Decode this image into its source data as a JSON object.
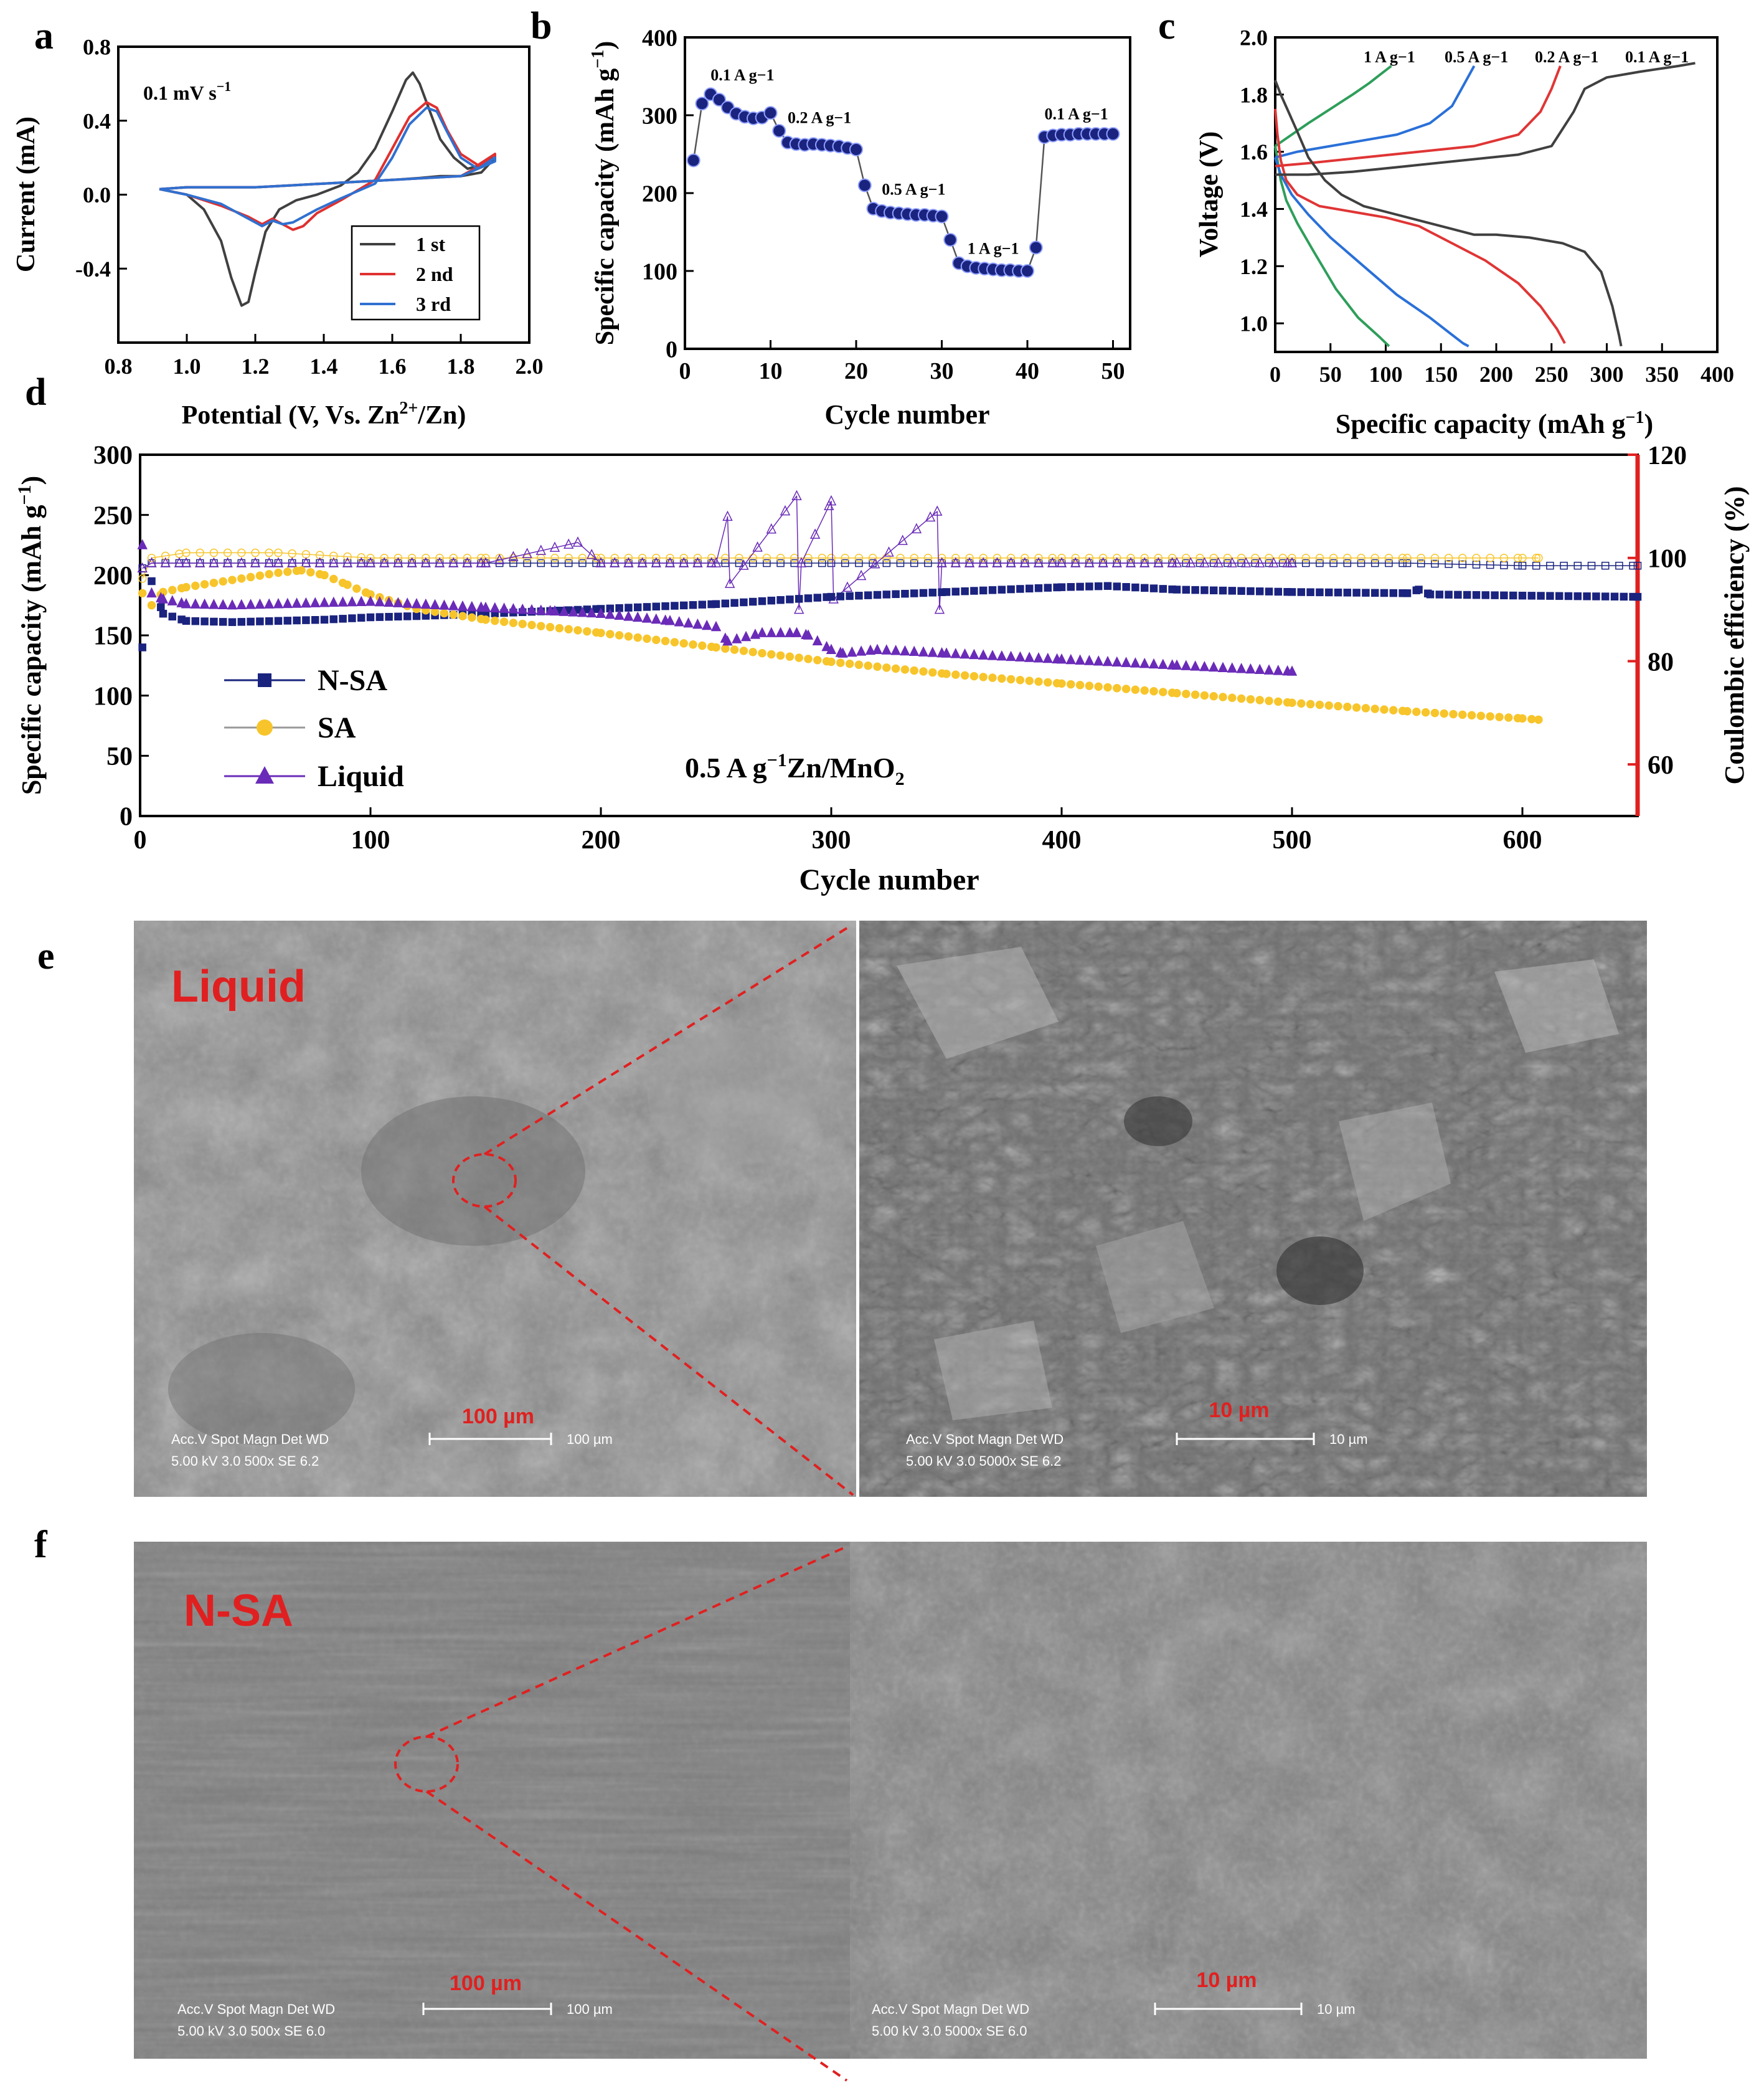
{
  "chart_data": [
    {
      "panel": "a",
      "type": "line",
      "xlabel": "Potential (V, Vs. Zn2+/Zn)",
      "ylabel": "Current (mA)",
      "xlim": [
        0.8,
        2.0
      ],
      "ylim": [
        -0.8,
        0.8
      ],
      "xticks": [
        "0.8",
        "1.0",
        "1.2",
        "1.4",
        "1.6",
        "1.8",
        "2.0"
      ],
      "yticks": [
        "-0.4",
        "0.0",
        "0.4",
        "0.8"
      ],
      "annotation": "0.1 mV s−1",
      "legend_position": "bottom-right",
      "series": [
        {
          "name": "1 st",
          "color": "#404040",
          "x": [
            0.92,
            1.0,
            1.05,
            1.1,
            1.13,
            1.16,
            1.18,
            1.2,
            1.23,
            1.27,
            1.32,
            1.38,
            1.45,
            1.5,
            1.55,
            1.6,
            1.64,
            1.66,
            1.68,
            1.71,
            1.74,
            1.78,
            1.82,
            1.86,
            1.9,
            1.9,
            1.86,
            1.8,
            1.74,
            1.68,
            1.6,
            1.5,
            1.4,
            1.3,
            1.2,
            1.1,
            1.0,
            0.92
          ],
          "y": [
            0.03,
            0.0,
            -0.08,
            -0.25,
            -0.45,
            -0.6,
            -0.58,
            -0.42,
            -0.2,
            -0.08,
            -0.03,
            0.0,
            0.05,
            0.12,
            0.25,
            0.45,
            0.62,
            0.66,
            0.6,
            0.45,
            0.3,
            0.2,
            0.14,
            0.16,
            0.22,
            0.2,
            0.12,
            0.1,
            0.1,
            0.09,
            0.08,
            0.07,
            0.06,
            0.05,
            0.04,
            0.04,
            0.04,
            0.03
          ]
        },
        {
          "name": "2 nd",
          "color": "#e03030",
          "x": [
            0.92,
            1.0,
            1.1,
            1.18,
            1.22,
            1.25,
            1.28,
            1.31,
            1.34,
            1.38,
            1.45,
            1.55,
            1.6,
            1.65,
            1.7,
            1.73,
            1.76,
            1.8,
            1.85,
            1.9,
            1.9,
            1.8,
            1.7,
            1.6,
            1.5,
            1.4,
            1.3,
            1.2,
            1.1,
            1.0,
            0.92
          ],
          "y": [
            0.03,
            0.0,
            -0.06,
            -0.12,
            -0.16,
            -0.13,
            -0.16,
            -0.19,
            -0.17,
            -0.1,
            -0.03,
            0.08,
            0.25,
            0.42,
            0.5,
            0.47,
            0.35,
            0.22,
            0.16,
            0.22,
            0.2,
            0.1,
            0.09,
            0.08,
            0.07,
            0.06,
            0.05,
            0.04,
            0.04,
            0.04,
            0.03
          ]
        },
        {
          "name": "3 rd",
          "color": "#3070d0",
          "x": [
            0.92,
            1.0,
            1.1,
            1.18,
            1.22,
            1.25,
            1.28,
            1.31,
            1.34,
            1.38,
            1.45,
            1.55,
            1.6,
            1.65,
            1.7,
            1.73,
            1.76,
            1.8,
            1.85,
            1.9,
            1.9,
            1.8,
            1.7,
            1.6,
            1.5,
            1.4,
            1.3,
            1.2,
            1.1,
            1.0,
            0.92
          ],
          "y": [
            0.03,
            0.0,
            -0.05,
            -0.13,
            -0.17,
            -0.14,
            -0.16,
            -0.15,
            -0.12,
            -0.08,
            -0.02,
            0.06,
            0.2,
            0.38,
            0.47,
            0.45,
            0.34,
            0.2,
            0.14,
            0.2,
            0.18,
            0.1,
            0.09,
            0.08,
            0.07,
            0.06,
            0.05,
            0.04,
            0.04,
            0.04,
            0.03
          ]
        }
      ]
    },
    {
      "panel": "b",
      "type": "scatter",
      "xlabel": "Cycle number",
      "ylabel": "Specific capacity (mAh g−1)",
      "xlim": [
        0,
        52
      ],
      "ylim": [
        0,
        400
      ],
      "xticks": [
        "0",
        "10",
        "20",
        "30",
        "40",
        "50"
      ],
      "yticks": [
        "0",
        "100",
        "200",
        "300",
        "400"
      ],
      "marker_color": "#1a237e",
      "x": [
        1,
        2,
        3,
        4,
        5,
        6,
        7,
        8,
        9,
        10,
        11,
        12,
        13,
        14,
        15,
        16,
        17,
        18,
        19,
        20,
        21,
        22,
        23,
        24,
        25,
        26,
        27,
        28,
        29,
        30,
        31,
        32,
        33,
        34,
        35,
        36,
        37,
        38,
        39,
        40,
        41,
        42,
        43,
        44,
        45,
        46,
        47,
        48,
        49,
        50
      ],
      "y": [
        242,
        315,
        327,
        320,
        310,
        302,
        298,
        296,
        297,
        303,
        280,
        265,
        263,
        262,
        263,
        262,
        261,
        260,
        258,
        256,
        210,
        180,
        177,
        175,
        174,
        173,
        172,
        172,
        171,
        170,
        140,
        110,
        106,
        104,
        103,
        102,
        101,
        101,
        100,
        100,
        130,
        272,
        274,
        275,
        275,
        276,
        276,
        276,
        276,
        276
      ],
      "labels": [
        {
          "text": "0.1 A g−1",
          "x": 3,
          "y": 345
        },
        {
          "text": "0.2 A g−1",
          "x": 12,
          "y": 290
        },
        {
          "text": "0.5 A g−1",
          "x": 23,
          "y": 198
        },
        {
          "text": "1 A g−1",
          "x": 33,
          "y": 122
        },
        {
          "text": "0.1 A g−1",
          "x": 42,
          "y": 295
        }
      ]
    },
    {
      "panel": "c",
      "type": "line",
      "xlabel": "Specific capacity (mAh g−1)",
      "ylabel": "Voltage (V)",
      "xlim": [
        0,
        400
      ],
      "ylim": [
        0.9,
        2.0
      ],
      "xticks": [
        "0",
        "50",
        "100",
        "150",
        "200",
        "250",
        "300",
        "350",
        "400"
      ],
      "yticks": [
        "1.0",
        "1.2",
        "1.4",
        "1.6",
        "1.8",
        "2.0"
      ],
      "series": [
        {
          "name": "1 A g−1",
          "color": "#2e9e5a",
          "charge": {
            "x": [
              0,
              15,
              30,
              50,
              70,
              85,
              95,
              105
            ],
            "y": [
              1.62,
              1.66,
              1.7,
              1.75,
              1.8,
              1.84,
              1.87,
              1.9
            ]
          },
          "discharge": {
            "x": [
              0,
              5,
              10,
              20,
              35,
              55,
              75,
              95,
              103
            ],
            "y": [
              1.62,
              1.5,
              1.43,
              1.35,
              1.25,
              1.12,
              1.02,
              0.95,
              0.92
            ]
          }
        },
        {
          "name": "0.5 A g−1",
          "color": "#2a70d8",
          "charge": {
            "x": [
              0,
              20,
              50,
              80,
              110,
              140,
              160,
              170,
              180
            ],
            "y": [
              1.58,
              1.6,
              1.62,
              1.64,
              1.66,
              1.7,
              1.76,
              1.83,
              1.9
            ]
          },
          "discharge": {
            "x": [
              0,
              5,
              15,
              30,
              50,
              80,
              110,
              140,
              160,
              170,
              175
            ],
            "y": [
              1.58,
              1.52,
              1.45,
              1.38,
              1.3,
              1.2,
              1.1,
              1.02,
              0.96,
              0.93,
              0.92
            ]
          }
        },
        {
          "name": "0.2 A g−1",
          "color": "#e03535",
          "charge": {
            "x": [
              0,
              30,
              80,
              130,
              180,
              220,
              240,
              250,
              258
            ],
            "y": [
              1.55,
              1.56,
              1.58,
              1.6,
              1.62,
              1.66,
              1.74,
              1.82,
              1.9
            ]
          },
          "discharge": {
            "x": [
              0,
              2,
              5,
              10,
              20,
              40,
              70,
              100,
              130,
              160,
              190,
              220,
              240,
              255,
              262
            ],
            "y": [
              1.75,
              1.66,
              1.57,
              1.5,
              1.45,
              1.41,
              1.39,
              1.37,
              1.34,
              1.28,
              1.22,
              1.14,
              1.06,
              0.98,
              0.93
            ]
          }
        },
        {
          "name": "0.1 A g−1",
          "color": "#404040",
          "charge": {
            "x": [
              0,
              30,
              70,
              120,
              170,
              220,
              250,
              270,
              280,
              300,
              330,
              365,
              380
            ],
            "y": [
              1.52,
              1.52,
              1.53,
              1.55,
              1.57,
              1.59,
              1.62,
              1.74,
              1.82,
              1.86,
              1.88,
              1.9,
              1.91
            ]
          },
          "discharge": {
            "x": [
              0,
              5,
              12,
              20,
              30,
              45,
              60,
              80,
              100,
              130,
              160,
              180,
              200,
              230,
              260,
              280,
              295,
              305,
              311,
              313
            ],
            "y": [
              1.85,
              1.8,
              1.74,
              1.67,
              1.58,
              1.5,
              1.45,
              1.41,
              1.39,
              1.36,
              1.33,
              1.31,
              1.31,
              1.3,
              1.28,
              1.25,
              1.18,
              1.06,
              0.96,
              0.92
            ]
          }
        }
      ]
    },
    {
      "panel": "d",
      "type": "scatter",
      "xlabel": "Cycle number",
      "ylabel": "Specific capacity (mAh g−1)",
      "y2label": "Coulombic efficiency (%)",
      "xlim": [
        0,
        650
      ],
      "ylim": [
        0,
        300
      ],
      "y2lim": [
        50,
        120
      ],
      "xticks": [
        "0",
        "100",
        "200",
        "300",
        "400",
        "500",
        "600"
      ],
      "yticks": [
        "0",
        "50",
        "100",
        "150",
        "200",
        "250",
        "300"
      ],
      "y2ticks": [
        "60",
        "80",
        "100",
        "120"
      ],
      "annotation": "0.5 A g−1 Zn/MnO2",
      "legend_position": "bottom-left",
      "series": [
        {
          "name": "N-SA",
          "color": "#1a237e",
          "marker": "square",
          "x": [
            1,
            5,
            10,
            20,
            40,
            60,
            80,
            100,
            120,
            150,
            200,
            250,
            300,
            350,
            400,
            420,
            450,
            500,
            550,
            555,
            560,
            600,
            650
          ],
          "y": [
            140,
            195,
            168,
            162,
            161,
            162,
            163,
            165,
            166,
            168,
            172,
            176,
            182,
            186,
            190,
            191,
            188,
            186,
            185,
            188,
            184,
            183,
            182
          ],
          "ce_x": [
            1,
            5,
            20,
            60,
            100,
            150,
            200,
            300,
            400,
            500,
            550,
            600,
            650
          ],
          "ce_y": [
            98,
            99,
            99,
            99,
            99,
            99,
            99,
            99,
            99,
            99,
            99,
            98.5,
            98.5
          ]
        },
        {
          "name": "SA",
          "color": "#f7c52b",
          "marker": "circle",
          "x": [
            1,
            5,
            10,
            20,
            40,
            60,
            70,
            80,
            90,
            100,
            120,
            150,
            200,
            250,
            300,
            350,
            400,
            450,
            500,
            550,
            600,
            607
          ],
          "y": [
            185,
            175,
            186,
            190,
            196,
            202,
            204,
            200,
            192,
            184,
            172,
            163,
            152,
            140,
            128,
            118,
            110,
            102,
            94,
            87,
            81,
            80
          ],
          "ce_x": [
            1,
            5,
            20,
            60,
            100,
            150,
            200,
            300,
            400,
            500,
            550,
            600,
            607
          ],
          "ce_y": [
            96,
            100,
            101,
            101,
            100,
            100,
            100,
            100,
            100,
            100,
            100,
            100,
            100
          ]
        },
        {
          "name": "Liquid",
          "color": "#6a2bb8",
          "marker": "triangle",
          "x": [
            1,
            5,
            10,
            20,
            40,
            60,
            80,
            100,
            120,
            150,
            180,
            200,
            230,
            250,
            255,
            270,
            285,
            290,
            300,
            305,
            320,
            350,
            400,
            450,
            500
          ],
          "y": [
            225,
            185,
            180,
            176,
            175,
            176,
            177,
            178,
            176,
            173,
            170,
            168,
            162,
            157,
            145,
            152,
            152,
            150,
            138,
            135,
            138,
            135,
            130,
            125,
            120
          ],
          "ce_x": [
            1,
            5,
            20,
            60,
            100,
            150,
            190,
            200,
            250,
            255,
            256,
            285,
            286,
            287,
            300,
            301,
            346,
            347,
            348,
            400,
            450,
            500
          ],
          "ce_y": [
            98,
            99,
            99,
            99,
            99,
            99,
            103,
            99,
            99,
            108,
            95,
            112,
            90,
            99,
            111,
            92,
            109,
            90,
            99,
            99,
            99,
            99
          ]
        }
      ]
    }
  ],
  "panel_labels": {
    "a": "a",
    "b": "b",
    "c": "c",
    "d": "d",
    "e": "e",
    "f": "f"
  },
  "axis_text": {
    "a_xlabel_pre": "Potential (V, Vs. Zn",
    "a_xlabel_sup": "2+",
    "a_xlabel_post": "/Zn)",
    "a_ylabel": "Current (mA)",
    "a_annot_main": "0.1 mV s",
    "a_annot_sup": "−1",
    "b_xlabel": "Cycle number",
    "b_ylabel_main": "Specific capacity (mAh g",
    "b_ylabel_sup": "−1",
    "b_ylabel_end": ")",
    "c_xlabel_main": "Specific capacity (mAh g",
    "c_xlabel_sup": "−1",
    "c_xlabel_end": ")",
    "c_ylabel": "Voltage (V)",
    "d_xlabel": "Cycle number",
    "d_ylabel_main": "Specific capacity (mAh g",
    "d_ylabel_sup": "−1",
    "d_ylabel_end": ")",
    "d_y2label": "Coulombic efficiency (%)",
    "d_annot_1": "0.5 A g",
    "d_annot_sup": "−1",
    "d_annot_2": "Zn/MnO",
    "d_annot_sub": "2"
  },
  "sem": {
    "e_label": "Liquid",
    "f_label": "N-SA",
    "scale_100": "100 µm",
    "scale_10": "10 µm",
    "e_left_info_head": "Acc.V  Spot Magn    Det  WD",
    "e_left_info_val": "5.00 kV 3.0   500x     SE   6.2",
    "e_left_scale_text": "100 µm",
    "e_right_info_head": "Acc.V  Spot Magn    Det  WD",
    "e_right_info_val": "5.00 kV 3.0   5000x    SE   6.2",
    "e_right_scale_text": "10 µm",
    "f_left_info_head": "Acc.V  Spot Magn    Det  WD",
    "f_left_info_val": "5.00 kV 3.0   500x     SE   6.0",
    "f_left_scale_text": "100 µm",
    "f_right_info_head": "Acc.V  Spot Magn    Det  WD",
    "f_right_info_val": "5.00 kV 3.0   5000x    SE   6.0",
    "f_right_scale_text": "10 µm"
  },
  "colors": {
    "axis": "#000000",
    "right_axis": "#e02020",
    "annotation_red": "#e02020",
    "sem_liquid_bg": "#8a8a8a",
    "sem_liquid_zoom_bg": "#6e6e6e",
    "sem_nsa_bg": "#7a7a7a",
    "sem_nsa_zoom_bg": "#808080"
  }
}
